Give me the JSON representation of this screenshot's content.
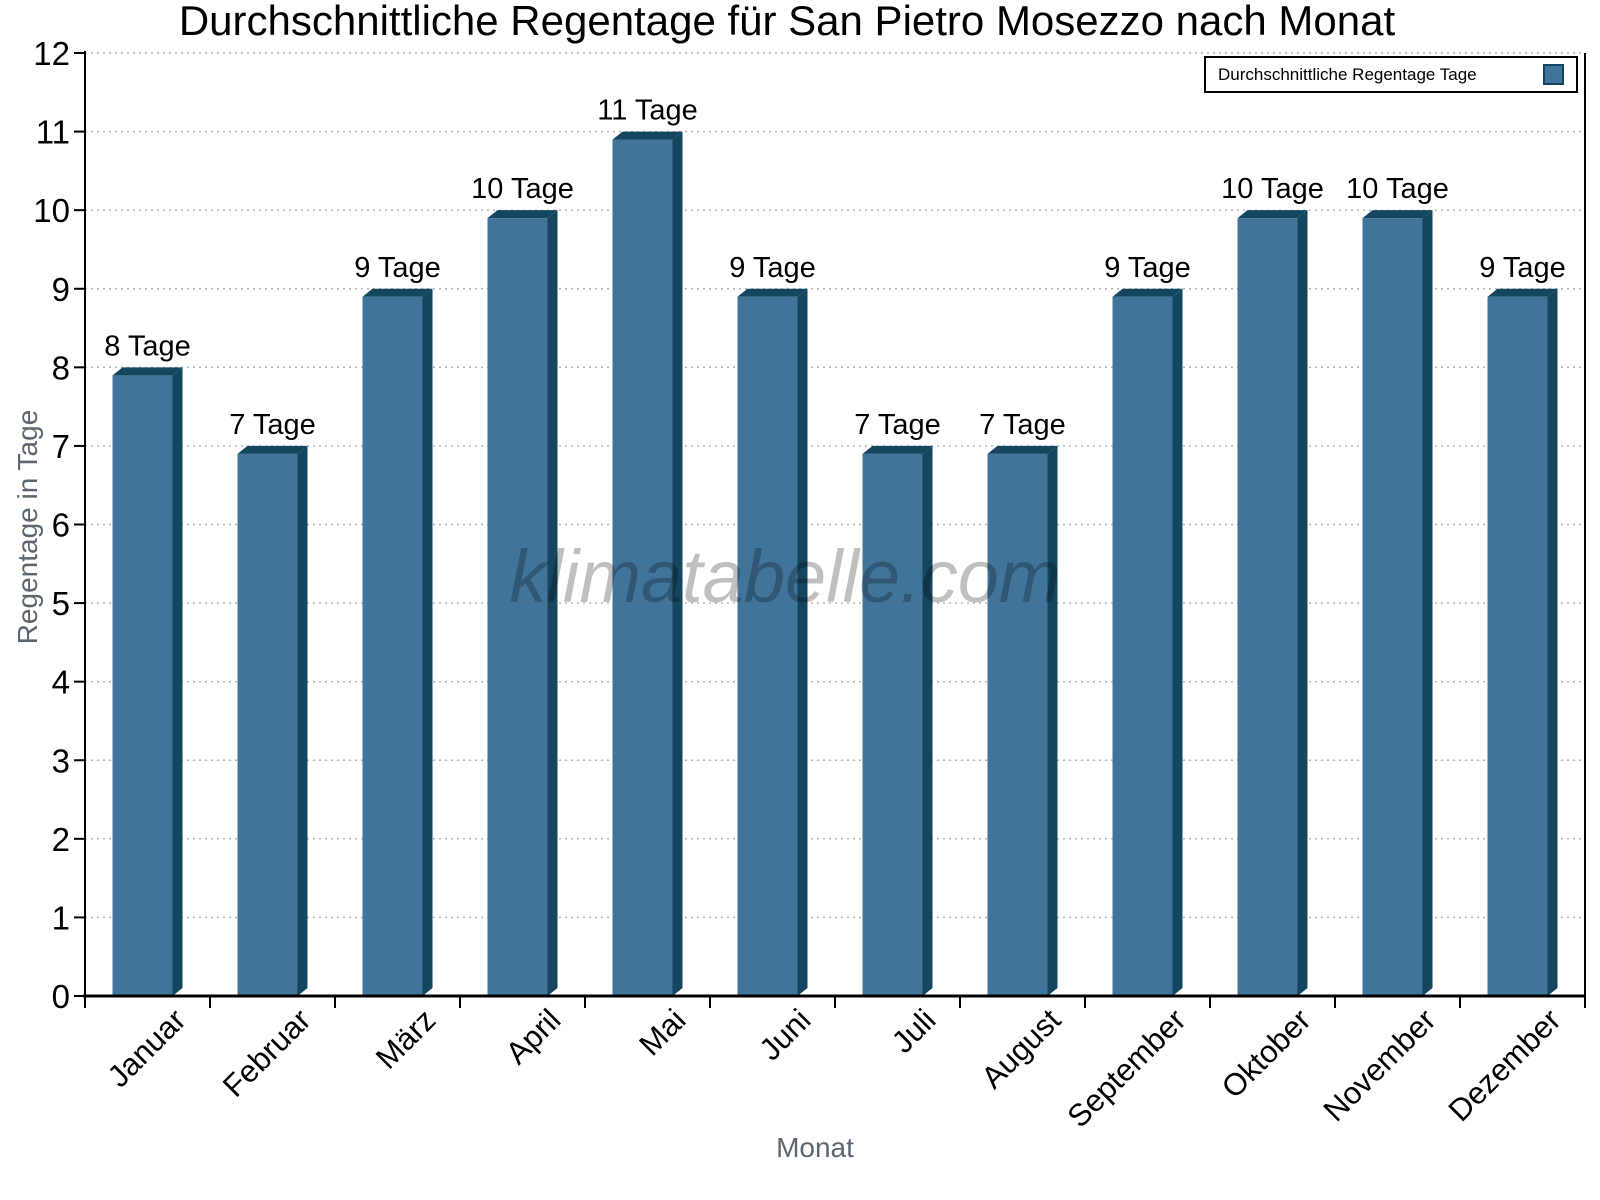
{
  "title": "Durchschnittliche Regentage für San Pietro Mosezzo nach Monat",
  "legend": {
    "label": "Durchschnittliche Regentage Tage"
  },
  "watermark": "klimatabelle.com",
  "colors": {
    "bar_face": "#40749A",
    "bar_edge": "#15465F",
    "grid_line": "#b1b1b1",
    "axis_line": "#000000",
    "muted_text": "#5c6670",
    "watermark_text": "rgba(0,0,0,0.25)"
  },
  "chart_data": {
    "type": "bar",
    "title": "Durchschnittliche Regentage für San Pietro Mosezzo nach Monat",
    "categories": [
      "Januar",
      "Februar",
      "März",
      "April",
      "Mai",
      "Juni",
      "Juli",
      "August",
      "September",
      "Oktober",
      "November",
      "Dezember"
    ],
    "values": [
      8,
      7,
      9,
      10,
      11,
      9,
      7,
      7,
      9,
      10,
      10,
      9
    ],
    "bar_labels": [
      "8 Tage",
      "7 Tage",
      "9 Tage",
      "10 Tage",
      "11 Tage",
      "9 Tage",
      "7 Tage",
      "7 Tage",
      "9 Tage",
      "10 Tage",
      "10 Tage",
      "9 Tage"
    ],
    "series": [
      {
        "name": "Durchschnittliche Regentage Tage",
        "values": [
          8,
          7,
          9,
          10,
          11,
          9,
          7,
          7,
          9,
          10,
          10,
          9
        ]
      }
    ],
    "xlabel": "Monat",
    "ylabel": "Regentage in Tage",
    "ylim": [
      0,
      12
    ],
    "ytick_interval": 1,
    "yticks": [
      0,
      1,
      2,
      3,
      4,
      5,
      6,
      7,
      8,
      9,
      10,
      11,
      12
    ],
    "grid": "horizontal-dotted",
    "legend_position": "top-right",
    "bar_label_unit": "Tage",
    "bar_style": "3d-bevel"
  }
}
